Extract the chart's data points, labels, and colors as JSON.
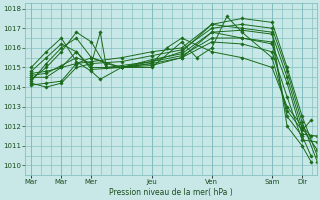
{
  "title": "",
  "xlabel": "Pression niveau de la mer( hPa )",
  "ylabel": "",
  "bg_color": "#c8e8e8",
  "grid_color": "#7ab8b8",
  "line_color": "#1a6b1a",
  "ylim": [
    1009.5,
    1018.3
  ],
  "yticks": [
    1010,
    1011,
    1012,
    1013,
    1014,
    1015,
    1016,
    1017,
    1018
  ],
  "xtick_labels": [
    "Mar",
    "Mar",
    "Mer",
    "Jeu",
    "Ven",
    "Sam",
    "Dir"
  ],
  "xtick_positions": [
    0,
    24,
    48,
    96,
    144,
    192,
    216
  ],
  "xlim": [
    -5,
    228
  ],
  "series": [
    [
      0,
      1014.7,
      12,
      1014.8,
      24,
      1015.0,
      36,
      1015.2,
      48,
      1015.3,
      72,
      1015.5,
      96,
      1015.8,
      120,
      1016.0,
      144,
      1017.2,
      168,
      1017.5,
      192,
      1017.3,
      204,
      1015.0,
      216,
      1012.5,
      228,
      1010.5
    ],
    [
      0,
      1014.6,
      12,
      1014.7,
      24,
      1015.1,
      36,
      1015.5,
      48,
      1015.2,
      72,
      1015.3,
      96,
      1015.6,
      120,
      1015.9,
      144,
      1017.0,
      168,
      1017.2,
      192,
      1017.0,
      204,
      1014.8,
      216,
      1012.2,
      228,
      1010.2
    ],
    [
      0,
      1014.5,
      12,
      1014.5,
      24,
      1015.0,
      36,
      1015.8,
      48,
      1014.9,
      72,
      1015.0,
      96,
      1015.4,
      120,
      1015.7,
      144,
      1016.8,
      168,
      1016.9,
      192,
      1016.7,
      204,
      1014.5,
      216,
      1011.9,
      228,
      1010.8
    ],
    [
      0,
      1014.4,
      12,
      1015.0,
      24,
      1015.8,
      36,
      1016.8,
      48,
      1016.3,
      60,
      1015.0,
      72,
      1015.1,
      96,
      1015.3,
      120,
      1015.6,
      144,
      1016.5,
      168,
      1016.5,
      192,
      1016.2,
      204,
      1014.2,
      216,
      1011.6,
      228,
      1011.5
    ],
    [
      0,
      1014.3,
      12,
      1015.2,
      24,
      1016.0,
      36,
      1016.5,
      48,
      1015.5,
      60,
      1015.2,
      72,
      1015.0,
      96,
      1015.2,
      120,
      1015.5,
      144,
      1016.3,
      168,
      1016.2,
      192,
      1015.8,
      204,
      1013.5,
      216,
      1011.3,
      228,
      1011.2
    ],
    [
      0,
      1014.8,
      12,
      1015.5,
      24,
      1016.2,
      36,
      1015.8,
      48,
      1015.0,
      72,
      1015.0,
      96,
      1015.0,
      120,
      1016.3,
      132,
      1015.5,
      144,
      1016.0,
      156,
      1017.6,
      168,
      1016.8,
      192,
      1015.5,
      204,
      1012.8,
      216,
      1011.8,
      223,
      1012.3
    ],
    [
      0,
      1015.0,
      12,
      1015.8,
      24,
      1016.5,
      36,
      1015.3,
      48,
      1014.8,
      55,
      1014.4,
      72,
      1015.0,
      96,
      1015.2,
      108,
      1016.0,
      120,
      1016.5,
      144,
      1015.8,
      168,
      1015.5,
      192,
      1015.0,
      204,
      1013.0,
      216,
      1012.0,
      223,
      1011.5
    ],
    [
      0,
      1014.2,
      12,
      1014.0,
      24,
      1014.2,
      36,
      1015.0,
      48,
      1015.2,
      55,
      1016.8,
      60,
      1015.0,
      72,
      1015.0,
      96,
      1015.3,
      120,
      1015.8,
      144,
      1017.2,
      168,
      1017.0,
      192,
      1016.8,
      204,
      1012.0,
      216,
      1011.0,
      223,
      1010.2
    ],
    [
      0,
      1014.1,
      12,
      1014.2,
      24,
      1014.3,
      36,
      1015.2,
      48,
      1015.5,
      72,
      1015.0,
      96,
      1015.1,
      120,
      1015.5,
      144,
      1016.8,
      168,
      1016.5,
      192,
      1016.3,
      204,
      1012.5,
      216,
      1011.5,
      223,
      1010.5
    ]
  ]
}
